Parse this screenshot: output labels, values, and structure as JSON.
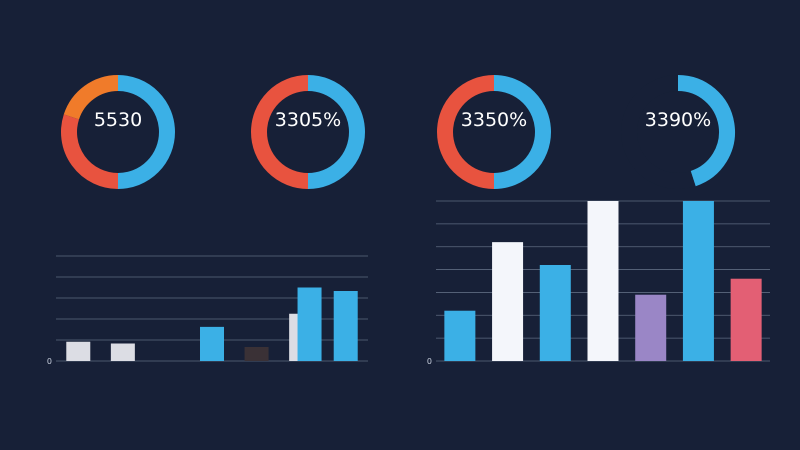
{
  "header": {
    "text": ""
  },
  "colors": {
    "background": "#172037",
    "blue": "#3bb0e6",
    "red": "#e8533f",
    "orange": "#f07b2a",
    "white": "#f4f6fb",
    "light_gray": "#dcdde4",
    "purple": "#9a86c6",
    "pink": "#e35f74",
    "dark_brown": "#3a3136",
    "grid": "#5e6a80"
  },
  "chart_data": [
    {
      "type": "pie",
      "subtype": "donut",
      "value_label": "5530",
      "sub_label": "",
      "slices": [
        {
          "value": 50,
          "color": "#3bb0e6"
        },
        {
          "value": 30,
          "color": "#e8533f"
        },
        {
          "value": 20,
          "color": "#f07b2a"
        }
      ]
    },
    {
      "type": "pie",
      "subtype": "donut",
      "value_label": "3305%",
      "sub_label": "",
      "slices": [
        {
          "value": 50,
          "color": "#3bb0e6"
        },
        {
          "value": 50,
          "color": "#e8533f"
        }
      ]
    },
    {
      "type": "pie",
      "subtype": "donut",
      "value_label": "3350%",
      "sub_label": "",
      "slices": [
        {
          "value": 50,
          "color": "#3bb0e6"
        },
        {
          "value": 50,
          "color": "#e8533f"
        }
      ]
    },
    {
      "type": "pie",
      "subtype": "donut",
      "value_label": "3390%",
      "sub_label": "",
      "slices": [
        {
          "value": 45,
          "color": "#3bb0e6"
        },
        {
          "value": 55,
          "color": "#172037"
        }
      ]
    },
    {
      "type": "bar",
      "categories": [
        "",
        "",
        "",
        "",
        "",
        "",
        ""
      ],
      "tick_labels": [
        "0",
        "",
        "",
        "",
        "",
        ""
      ],
      "ylim": [
        0,
        6
      ],
      "grid": true,
      "series": [
        {
          "values": [
            1.1,
            1.0,
            0.0,
            1.95,
            0.8,
            2.7,
            4.0
          ],
          "colors": [
            "#dcdde4",
            "#dcdde4",
            "#172037",
            "#3bb0e6",
            "#3a3136",
            "#dcdde4",
            "#3bb0e6"
          ]
        },
        {
          "values": [
            0,
            0,
            0,
            0,
            0,
            4.2,
            0
          ],
          "colors": [
            "#3bb0e6",
            "#3bb0e6",
            "#3bb0e6",
            "#3bb0e6",
            "#3bb0e6",
            "#3bb0e6",
            "#3bb0e6"
          ]
        }
      ]
    },
    {
      "type": "bar",
      "categories": [
        "",
        "",
        "",
        "",
        "",
        "",
        ""
      ],
      "tick_labels": [
        "0",
        "",
        "",
        "",
        "",
        "",
        "",
        ""
      ],
      "ylim": [
        0,
        7
      ],
      "grid": true,
      "series": [
        {
          "values": [
            2.2,
            5.2,
            4.2,
            7.0,
            2.9,
            7.0,
            3.6
          ],
          "colors": [
            "#3bb0e6",
            "#f4f6fb",
            "#3bb0e6",
            "#f4f6fb",
            "#9a86c6",
            "#3bb0e6",
            "#e35f74"
          ]
        }
      ]
    }
  ]
}
